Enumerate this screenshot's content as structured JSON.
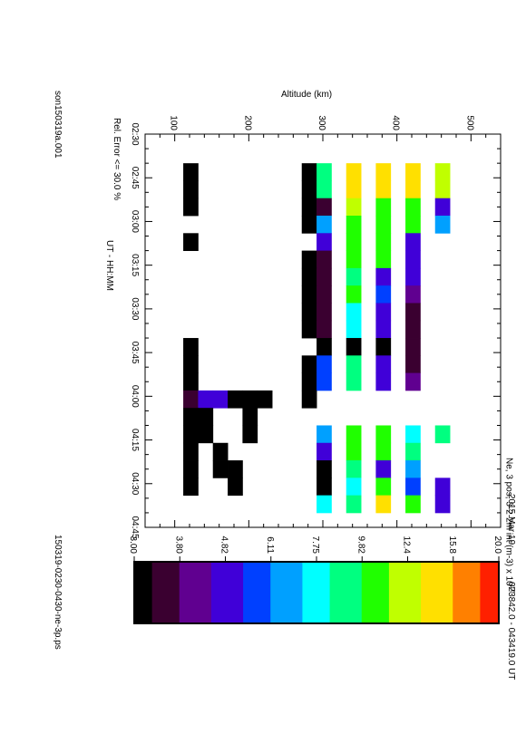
{
  "header": {
    "date": "2015 Mar 19",
    "time_range": "023842.0 - 043419.0 UT",
    "parameter_title": "Ne, 3 pos, 3-2-2m int (m-3) x 10",
    "parameter_exponent": "10",
    "xlabel": "UT - HH:MM",
    "ylabel": "Altitude (km)",
    "rel_error": "Rel. Error <= 30.0 %",
    "site_code": "son150319a.001",
    "file_name": "150319-0230-0430-ne-3p.ps"
  },
  "colorbar": {
    "tick_labels": [
      "3.00",
      "3.80",
      "4.82",
      "6.11",
      "7.75",
      "9.82",
      "12.4",
      "15.8",
      "20.0"
    ],
    "colors": [
      "#000000",
      "#3a0030",
      "#600090",
      "#4000d8",
      "#0040ff",
      "#00a0ff",
      "#00ffff",
      "#00ff80",
      "#20ff00",
      "#c0ff00",
      "#ffe000",
      "#ff8000",
      "#ff2000"
    ]
  },
  "chart_data": {
    "type": "heatmap",
    "title": "Ne, 3 pos, 3-2-2m int (m-3) x 10^10",
    "xlabel": "UT - HH:MM",
    "ylabel": "Altitude (km)",
    "x_ticks": [
      "02:30",
      "02:45",
      "03:00",
      "03:15",
      "03:30",
      "03:45",
      "04:00",
      "04:15",
      "04:30",
      "04:45"
    ],
    "y_ticks": [
      "100",
      "200",
      "300",
      "400",
      "500"
    ],
    "xlim_minutes": [
      150,
      285
    ],
    "ylim_km": [
      60,
      540
    ],
    "value_range": [
      3.0,
      20.0
    ],
    "scale": "log",
    "rows_altitude_km": [
      122,
      142,
      162,
      182,
      202,
      222,
      242,
      262,
      282,
      302,
      322,
      342,
      362,
      382,
      402,
      422,
      442,
      462
    ],
    "cells": [
      [
        160,
        166,
        [
          [
            122,
            3.0
          ],
          [
            282,
            3.0
          ],
          [
            302,
            8.5
          ],
          [
            342,
            13.5
          ],
          [
            382,
            15.5
          ],
          [
            422,
            15.0
          ],
          [
            462,
            13.0
          ]
        ]
      ],
      [
        166,
        172,
        [
          [
            122,
            3.0
          ],
          [
            282,
            3.0
          ],
          [
            302,
            8.5
          ],
          [
            342,
            13.5
          ],
          [
            382,
            15.5
          ],
          [
            422,
            15.0
          ],
          [
            462,
            13.0
          ]
        ]
      ],
      [
        172,
        178,
        [
          [
            122,
            3.0
          ],
          [
            282,
            3.0
          ],
          [
            302,
            3.8
          ],
          [
            342,
            12.0
          ],
          [
            382,
            11.0
          ],
          [
            422,
            11.0
          ],
          [
            462,
            4.5
          ]
        ]
      ],
      [
        178,
        184,
        [
          [
            282,
            3.0
          ],
          [
            302,
            6.5
          ],
          [
            342,
            11.0
          ],
          [
            382,
            10.5
          ],
          [
            422,
            10.5
          ],
          [
            462,
            6.5
          ]
        ]
      ],
      [
        184,
        190,
        [
          [
            122,
            3.0
          ],
          [
            302,
            4.8
          ],
          [
            342,
            11.0
          ],
          [
            382,
            11.0
          ],
          [
            422,
            4.8
          ]
        ]
      ],
      [
        190,
        196,
        [
          [
            282,
            3.0
          ],
          [
            302,
            3.3
          ],
          [
            342,
            11.0
          ],
          [
            382,
            10.5
          ],
          [
            422,
            4.5
          ]
        ]
      ],
      [
        196,
        202,
        [
          [
            282,
            3.0
          ],
          [
            302,
            3.8
          ],
          [
            342,
            9.5
          ],
          [
            382,
            5.0
          ],
          [
            422,
            4.5
          ]
        ]
      ],
      [
        202,
        208,
        [
          [
            282,
            3.0
          ],
          [
            302,
            3.8
          ],
          [
            342,
            10.5
          ],
          [
            382,
            6.0
          ],
          [
            422,
            4.2
          ]
        ]
      ],
      [
        208,
        214,
        [
          [
            282,
            3.0
          ],
          [
            302,
            3.8
          ],
          [
            342,
            8.0
          ],
          [
            382,
            4.5
          ],
          [
            422,
            3.8
          ]
        ]
      ],
      [
        214,
        220,
        [
          [
            282,
            3.0
          ],
          [
            302,
            3.8
          ],
          [
            342,
            8.0
          ],
          [
            382,
            4.8
          ],
          [
            422,
            3.8
          ]
        ]
      ],
      [
        220,
        226,
        [
          [
            122,
            3.0
          ],
          [
            302,
            3.0
          ],
          [
            342,
            3.0
          ],
          [
            382,
            3.0
          ],
          [
            422,
            3.4
          ]
        ]
      ],
      [
        226,
        232,
        [
          [
            122,
            3.0
          ],
          [
            282,
            3.0
          ],
          [
            302,
            6.0
          ],
          [
            342,
            9.0
          ],
          [
            382,
            4.8
          ],
          [
            422,
            3.8
          ]
        ]
      ],
      [
        232,
        238,
        [
          [
            122,
            3.0
          ],
          [
            282,
            3.0
          ],
          [
            302,
            6.0
          ],
          [
            342,
            9.0
          ],
          [
            382,
            4.8
          ],
          [
            422,
            4.2
          ]
        ]
      ],
      [
        238,
        244,
        [
          [
            122,
            3.3
          ],
          [
            142,
            4.8
          ],
          [
            162,
            5.0
          ],
          [
            182,
            3.0
          ],
          [
            202,
            3.0
          ],
          [
            222,
            3.0
          ],
          [
            282,
            3.0
          ]
        ]
      ],
      [
        244,
        250,
        [
          [
            122,
            3.0
          ],
          [
            142,
            3.0
          ],
          [
            202,
            3.0
          ]
        ]
      ],
      [
        250,
        256,
        [
          [
            122,
            3.0
          ],
          [
            142,
            3.0
          ],
          [
            202,
            3.0
          ],
          [
            302,
            7.0
          ],
          [
            342,
            11.0
          ],
          [
            382,
            11.0
          ],
          [
            422,
            8.0
          ],
          [
            462,
            8.5
          ]
        ]
      ],
      [
        256,
        262,
        [
          [
            122,
            3.0
          ],
          [
            162,
            3.0
          ],
          [
            302,
            4.5
          ],
          [
            342,
            11.0
          ],
          [
            382,
            11.0
          ],
          [
            422,
            9.0
          ]
        ]
      ],
      [
        262,
        268,
        [
          [
            122,
            3.0
          ],
          [
            162,
            3.0
          ],
          [
            182,
            3.0
          ],
          [
            302,
            3.0
          ],
          [
            342,
            9.5
          ],
          [
            382,
            4.5
          ],
          [
            422,
            7.0
          ]
        ]
      ],
      [
        268,
        274,
        [
          [
            122,
            3.0
          ],
          [
            182,
            3.0
          ],
          [
            302,
            3.0
          ],
          [
            342,
            7.5
          ],
          [
            382,
            10.5
          ],
          [
            422,
            5.5
          ],
          [
            462,
            4.5
          ]
        ]
      ],
      [
        274,
        280,
        [
          [
            302,
            7.5
          ],
          [
            342,
            9.0
          ],
          [
            382,
            14.0
          ],
          [
            422,
            10.0
          ],
          [
            462,
            5.0
          ]
        ]
      ]
    ]
  }
}
